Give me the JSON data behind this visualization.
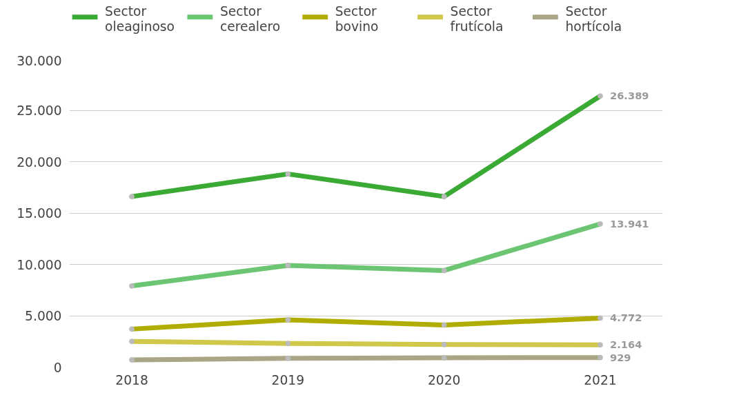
{
  "chart_data": {
    "type": "line",
    "categories": [
      "2018",
      "2019",
      "2020",
      "2021"
    ],
    "series": [
      {
        "name": "Sector oleaginoso",
        "color": "#3aaa35",
        "values": [
          16600,
          18800,
          16600,
          26389
        ],
        "value_labels": [
          null,
          null,
          null,
          "26.389"
        ]
      },
      {
        "name": "Sector cerealero",
        "color": "#6cc573",
        "values": [
          7900,
          9900,
          9400,
          13941
        ],
        "value_labels": [
          null,
          null,
          null,
          "13.941"
        ]
      },
      {
        "name": "Sector bovino",
        "color": "#b0ad00",
        "values": [
          3700,
          4600,
          4100,
          4772
        ],
        "value_labels": [
          null,
          null,
          null,
          "4.772"
        ]
      },
      {
        "name": "Sector frutícola",
        "color": "#cfc84a",
        "values": [
          2500,
          2300,
          2200,
          2164
        ],
        "value_labels": [
          null,
          null,
          null,
          "2.164"
        ]
      },
      {
        "name": "Sector hortícola",
        "color": "#a9a685",
        "values": [
          700,
          850,
          900,
          929
        ],
        "value_labels": [
          null,
          null,
          null,
          "929"
        ]
      }
    ],
    "ylim": [
      0,
      30000
    ],
    "yticks": [
      {
        "value": 0,
        "label": "0"
      },
      {
        "value": 5000,
        "label": "5.000"
      },
      {
        "value": 10000,
        "label": "10.000"
      },
      {
        "value": 15000,
        "label": "15.000"
      },
      {
        "value": 20000,
        "label": "20.000"
      },
      {
        "value": 25000,
        "label": "25.000"
      },
      {
        "value": 30000,
        "label": "30.000"
      }
    ],
    "grid": "y",
    "legend": "top",
    "marker": "circle",
    "line_style": "solid"
  }
}
